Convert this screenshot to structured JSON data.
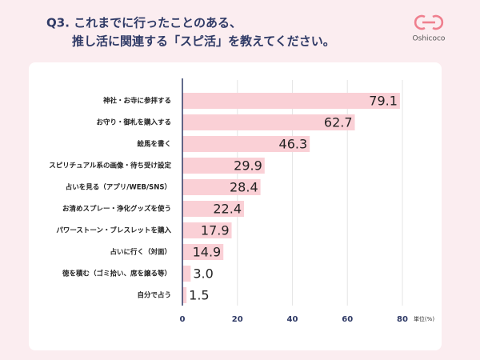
{
  "chart_data": {
    "type": "bar",
    "orientation": "horizontal",
    "title": [
      "Q3. これまでに行ったことのある、",
      "推し活に関連する「スピ活」を教えてください。"
    ],
    "brand": "Oshicoco",
    "unit_label": "単位(%)",
    "categories": [
      "神社・お寺に参拝する",
      "お守り・御札を購入する",
      "絵馬を書く",
      "スピリチュアル系の画像・待ち受け設定",
      "占いを見る（アプリ/WEB/SNS）",
      "お清めスプレー・浄化グッズを使う",
      "パワーストーン・ブレスレットを購入",
      "占いに行く（対面）",
      "徳を積む（ゴミ拾い、席を譲る等）",
      "自分で占う"
    ],
    "values": [
      79.1,
      62.7,
      46.3,
      29.9,
      28.4,
      22.4,
      17.9,
      14.9,
      3,
      1.5
    ],
    "value_labels": [
      "79.1",
      "62.7",
      "46.3",
      "29.9",
      "28.4",
      "22.4",
      "17.9",
      "14.9",
      "3.0",
      "1.5"
    ],
    "color": "#fad0d6",
    "xlim": [
      0,
      80
    ],
    "xticks": [
      0,
      20,
      40,
      60,
      80
    ],
    "grid": true
  }
}
